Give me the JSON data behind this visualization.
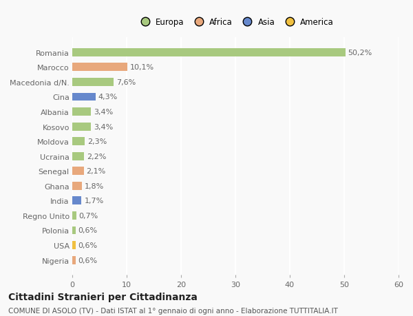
{
  "countries": [
    "Nigeria",
    "USA",
    "Polonia",
    "Regno Unito",
    "India",
    "Ghana",
    "Senegal",
    "Ucraina",
    "Moldova",
    "Kosovo",
    "Albania",
    "Cina",
    "Macedonia d/N.",
    "Marocco",
    "Romania"
  ],
  "values": [
    0.6,
    0.6,
    0.6,
    0.7,
    1.7,
    1.8,
    2.1,
    2.2,
    2.3,
    3.4,
    3.4,
    4.3,
    7.6,
    10.1,
    50.2
  ],
  "labels": [
    "0,6%",
    "0,6%",
    "0,6%",
    "0,7%",
    "1,7%",
    "1,8%",
    "2,1%",
    "2,2%",
    "2,3%",
    "3,4%",
    "3,4%",
    "4,3%",
    "7,6%",
    "10,1%",
    "50,2%"
  ],
  "colors": [
    "#e8a87c",
    "#f0c040",
    "#a8c97f",
    "#a8c97f",
    "#6688cc",
    "#e8a87c",
    "#e8a87c",
    "#a8c97f",
    "#a8c97f",
    "#a8c97f",
    "#a8c97f",
    "#6688cc",
    "#a8c97f",
    "#e8a87c",
    "#a8c97f"
  ],
  "legend_labels": [
    "Europa",
    "Africa",
    "Asia",
    "America"
  ],
  "legend_colors": [
    "#a8c97f",
    "#e8a87c",
    "#6688cc",
    "#f0c040"
  ],
  "title": "Cittadini Stranieri per Cittadinanza",
  "subtitle": "COMUNE DI ASOLO (TV) - Dati ISTAT al 1° gennaio di ogni anno - Elaborazione TUTTITALIA.IT",
  "xlim": [
    0,
    60
  ],
  "xticks": [
    0,
    10,
    20,
    30,
    40,
    50,
    60
  ],
  "background_color": "#f9f9f9",
  "bar_height": 0.55,
  "title_fontsize": 10,
  "subtitle_fontsize": 7.5,
  "label_fontsize": 8,
  "tick_fontsize": 8,
  "legend_fontsize": 8.5
}
